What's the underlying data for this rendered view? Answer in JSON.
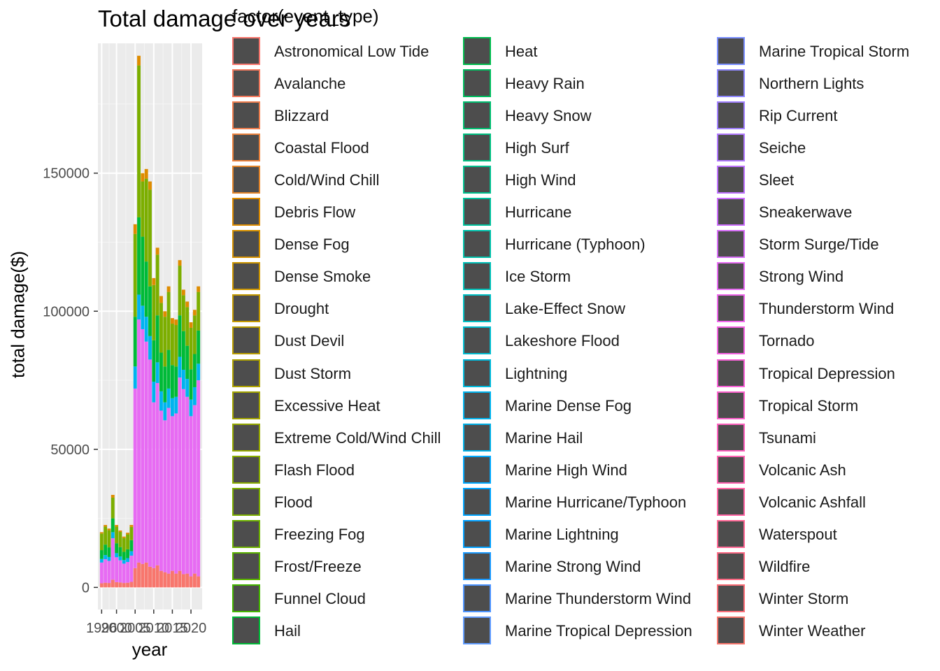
{
  "chart_data": {
    "type": "bar",
    "title": "Total damage over years",
    "xlabel": "year",
    "ylabel": "total damage($)",
    "legend_title": "factor(event_type)",
    "legend_position": "right",
    "grid": true,
    "ylim": [
      -8000,
      197000
    ],
    "xlim": [
      1995,
      2023
    ],
    "x_ticks": [
      1996,
      2000,
      2005,
      2010,
      2015,
      2020
    ],
    "x_tick_labels": [
      "1996",
      "2000",
      "2005",
      "2010",
      "2015",
      "2020"
    ],
    "y_ticks": [
      0,
      50000,
      100000,
      150000
    ],
    "y_tick_labels": [
      "0",
      "50000",
      "100000",
      "150000"
    ],
    "categories": [
      1996,
      1997,
      1998,
      1999,
      2000,
      2001,
      2002,
      2003,
      2004,
      2005,
      2006,
      2007,
      2008,
      2009,
      2010,
      2011,
      2012,
      2013,
      2014,
      2015,
      2016,
      2017,
      2018,
      2019,
      2020,
      2021,
      2022
    ],
    "series": [
      {
        "name": "Flash Flood",
        "color": "#F8766D",
        "values": [
          1500,
          1700,
          1600,
          2800,
          1900,
          1800,
          1600,
          1700,
          2000,
          7000,
          9000,
          8500,
          9000,
          7500,
          7000,
          8000,
          6000,
          5500,
          5000,
          6000,
          5000,
          6000,
          4800,
          5000,
          4000,
          5000,
          4000
        ]
      },
      {
        "name": "Thunderstorm Wind",
        "color": "#E76BF3",
        "values": [
          7500,
          8500,
          8000,
          15000,
          9000,
          8000,
          7000,
          7500,
          9500,
          65000,
          88000,
          85000,
          80000,
          75000,
          60000,
          66000,
          58000,
          55000,
          60000,
          56000,
          58000,
          70000,
          67000,
          64000,
          58000,
          61000,
          71000
        ]
      },
      {
        "name": "Lightning",
        "color": "#00B4EF",
        "values": [
          1300,
          1500,
          1400,
          2200,
          1500,
          1400,
          1300,
          1400,
          1600,
          8000,
          9000,
          8500,
          9000,
          8500,
          7500,
          7500,
          7000,
          6500,
          7000,
          6500,
          6000,
          7500,
          7000,
          6500,
          6000,
          6500,
          6000
        ]
      },
      {
        "name": "Hail",
        "color": "#00BA38",
        "values": [
          3200,
          3800,
          3500,
          5000,
          3600,
          3400,
          3000,
          3200,
          4000,
          18000,
          28000,
          25000,
          20000,
          18000,
          15000,
          17000,
          14000,
          13000,
          14000,
          12000,
          11000,
          15000,
          14000,
          12000,
          11000,
          12000,
          12000
        ]
      },
      {
        "name": "High Wind",
        "color": "#7CAE00",
        "values": [
          6000,
          6500,
          6200,
          7500,
          6000,
          5500,
          5000,
          5400,
          4800,
          30000,
          55000,
          20000,
          30000,
          35000,
          20000,
          22000,
          18000,
          18000,
          21000,
          15000,
          15000,
          18000,
          13000,
          14000,
          15000,
          14000,
          14000
        ]
      },
      {
        "name": "Winter Storm",
        "color": "#DE8C00",
        "values": [
          500,
          600,
          600,
          1000,
          600,
          500,
          500,
          600,
          700,
          3500,
          3500,
          3000,
          3500,
          3000,
          2500,
          2500,
          2500,
          2000,
          2000,
          2000,
          2000,
          2000,
          2000,
          2000,
          2000,
          2000,
          2000
        ]
      }
    ],
    "legend_entries": [
      "Astronomical Low Tide",
      "Avalanche",
      "Blizzard",
      "Coastal Flood",
      "Cold/Wind Chill",
      "Debris Flow",
      "Dense Fog",
      "Dense Smoke",
      "Drought",
      "Dust Devil",
      "Dust Storm",
      "Excessive Heat",
      "Extreme Cold/Wind Chill",
      "Flash Flood",
      "Flood",
      "Freezing Fog",
      "Frost/Freeze",
      "Funnel Cloud",
      "Hail",
      "Heat",
      "Heavy Rain",
      "Heavy Snow",
      "High Surf",
      "High Wind",
      "Hurricane",
      "Hurricane (Typhoon)",
      "Ice Storm",
      "Lake-Effect Snow",
      "Lakeshore Flood",
      "Lightning",
      "Marine Dense Fog",
      "Marine Hail",
      "Marine High Wind",
      "Marine Hurricane/Typhoon",
      "Marine Lightning",
      "Marine Strong Wind",
      "Marine Thunderstorm Wind",
      "Marine Tropical Depression",
      "Marine Tropical Storm",
      "Northern Lights",
      "Rip Current",
      "Seiche",
      "Sleet",
      "Sneakerwave",
      "Storm Surge/Tide",
      "Strong Wind",
      "Thunderstorm Wind",
      "Tornado",
      "Tropical Depression",
      "Tropical Storm",
      "Tsunami",
      "Volcanic Ash",
      "Volcanic Ashfall",
      "Waterspout",
      "Wildfire",
      "Winter Storm",
      "Winter Weather"
    ],
    "legend_key_fill": "#4D4D4D",
    "legend_outline_colors": [
      "#F8766D",
      "#F47A5E",
      "#F07E4E",
      "#EB823D",
      "#E5862B",
      "#DE8C00",
      "#D69100",
      "#CD9600",
      "#C49A00",
      "#BA9E00",
      "#AFA200",
      "#A3A500",
      "#96A900",
      "#88AC00",
      "#7CAE00",
      "#6DB100",
      "#5BB300",
      "#44B500",
      "#00BA38",
      "#00BC4E",
      "#00BD5F",
      "#00BE70",
      "#00C081",
      "#00C08F",
      "#00C19D",
      "#00C1AA",
      "#00C0B8",
      "#00BFC4",
      "#00BDD0",
      "#00B9DB",
      "#00B4EF",
      "#00AFE6",
      "#00A9FF",
      "#00A5FF",
      "#00A0FF",
      "#1C9BFF",
      "#4D94FF",
      "#619CFF",
      "#7B8FFF",
      "#8F88FF",
      "#A180FF",
      "#B179FF",
      "#BF72FF",
      "#CB6CFC",
      "#D66CF6",
      "#E76BF3",
      "#EF67EB",
      "#F563E2",
      "#F962D8",
      "#FC61CC",
      "#FE61BF",
      "#FF62B2",
      "#FF64A4",
      "#FF6795",
      "#FD6A85",
      "#FB6E78",
      "#F8766D"
    ]
  }
}
